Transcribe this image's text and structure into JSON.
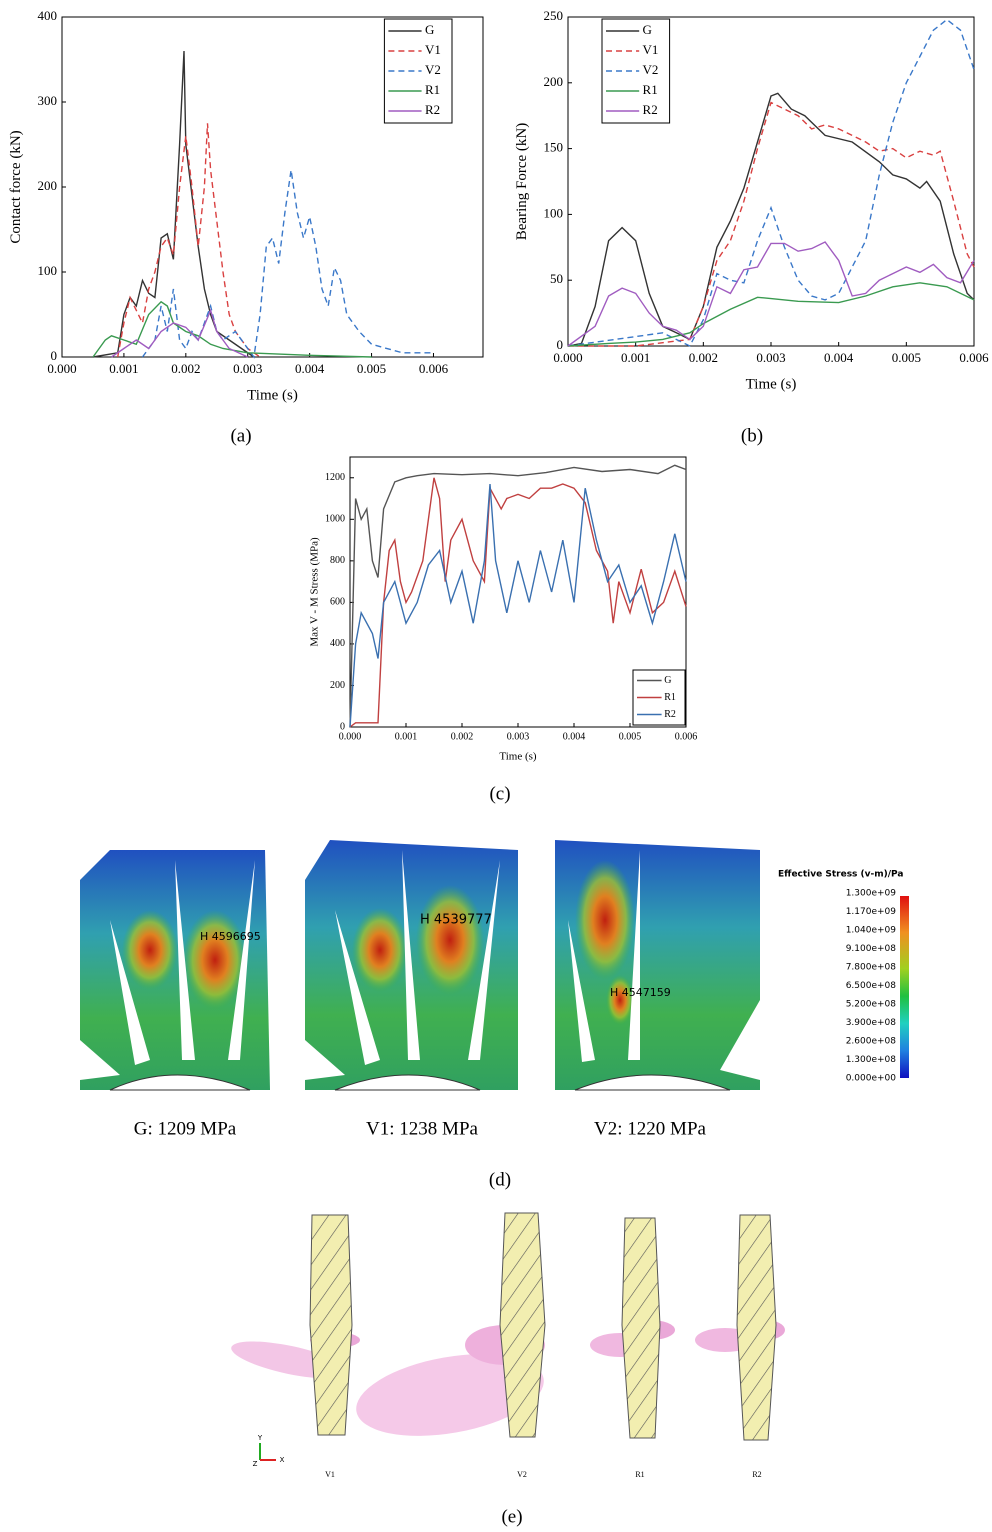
{
  "chart_data": [
    {
      "type": "line",
      "xlabel": "Time (s)",
      "ylabel": "Contact force (kN)",
      "xlim": [
        0,
        0.0068
      ],
      "ylim": [
        0,
        400
      ],
      "xticks": [
        {
          "value": 0,
          "label": "0.000"
        },
        {
          "value": 0.001,
          "label": "0.001"
        },
        {
          "value": 0.002,
          "label": "0.002"
        },
        {
          "value": 0.003,
          "label": "0.003"
        },
        {
          "value": 0.004,
          "label": "0.004"
        },
        {
          "value": 0.005,
          "label": "0.005"
        },
        {
          "value": 0.006,
          "label": "0.006"
        }
      ],
      "yticks": [
        0,
        100,
        200,
        300,
        400
      ],
      "legend": "upper right",
      "series": [
        {
          "name": "G",
          "color": "#333333",
          "dash": false,
          "x": [
            0.0005,
            0.0009,
            0.001,
            0.0011,
            0.0012,
            0.0013,
            0.0014,
            0.0015,
            0.0016,
            0.0017,
            0.0018,
            0.0019,
            0.00197,
            0.002,
            0.0021,
            0.0022,
            0.0023,
            0.0024,
            0.0025,
            0.0027,
            0.0029,
            0.0031
          ],
          "values": [
            0,
            5,
            50,
            70,
            60,
            90,
            75,
            70,
            140,
            145,
            115,
            250,
            360,
            250,
            190,
            130,
            80,
            50,
            30,
            20,
            10,
            0
          ]
        },
        {
          "name": "V1",
          "color": "#d94040",
          "dash": true,
          "x": [
            0.0009,
            0.001,
            0.0011,
            0.0012,
            0.0013,
            0.0014,
            0.0015,
            0.0016,
            0.0017,
            0.0018,
            0.0019,
            0.002,
            0.0021,
            0.0022,
            0.0023,
            0.00235,
            0.0024,
            0.0025,
            0.0026,
            0.0027,
            0.0028,
            0.003,
            0.0032
          ],
          "values": [
            0,
            40,
            70,
            55,
            40,
            80,
            100,
            130,
            140,
            120,
            200,
            260,
            200,
            130,
            200,
            275,
            220,
            160,
            100,
            50,
            30,
            10,
            0
          ]
        },
        {
          "name": "V2",
          "color": "#3a78c9",
          "dash": true,
          "x": [
            0.0013,
            0.0015,
            0.0016,
            0.0017,
            0.0018,
            0.0019,
            0.002,
            0.0021,
            0.0022,
            0.0023,
            0.0024,
            0.0025,
            0.0026,
            0.0028,
            0.003,
            0.0031,
            0.0032,
            0.0033,
            0.0034,
            0.0035,
            0.0036,
            0.0037,
            0.0038,
            0.0039,
            0.004,
            0.0041,
            0.0042,
            0.0043,
            0.0044,
            0.0045,
            0.0046,
            0.0048,
            0.005,
            0.0055,
            0.006
          ],
          "values": [
            0,
            20,
            60,
            30,
            80,
            20,
            10,
            30,
            20,
            40,
            60,
            30,
            20,
            30,
            10,
            0,
            50,
            130,
            140,
            110,
            170,
            220,
            170,
            140,
            165,
            130,
            80,
            60,
            105,
            90,
            50,
            30,
            15,
            5,
            5
          ]
        },
        {
          "name": "R1",
          "color": "#3a9a50",
          "dash": false,
          "x": [
            0.0005,
            0.0007,
            0.0008,
            0.001,
            0.0012,
            0.0014,
            0.0016,
            0.0017,
            0.0018,
            0.002,
            0.0022,
            0.0024,
            0.0026,
            0.003,
            0.004,
            0.005
          ],
          "values": [
            0,
            20,
            25,
            20,
            15,
            50,
            65,
            60,
            40,
            30,
            25,
            15,
            10,
            5,
            2,
            0
          ]
        },
        {
          "name": "R2",
          "color": "#a05cc0",
          "dash": false,
          "x": [
            0.0008,
            0.001,
            0.0012,
            0.0014,
            0.0016,
            0.0018,
            0.002,
            0.0022,
            0.0024,
            0.0025,
            0.0027,
            0.003
          ],
          "values": [
            0,
            10,
            20,
            10,
            30,
            40,
            35,
            20,
            55,
            30,
            10,
            0
          ]
        }
      ]
    },
    {
      "type": "line",
      "xlabel": "Time (s)",
      "ylabel": "Bearing Force (kN)",
      "xlim": [
        0,
        0.006
      ],
      "ylim": [
        0,
        250
      ],
      "xticks": [
        {
          "value": 0,
          "label": "0.000"
        },
        {
          "value": 0.001,
          "label": "0.001"
        },
        {
          "value": 0.002,
          "label": "0.002"
        },
        {
          "value": 0.003,
          "label": "0.003"
        },
        {
          "value": 0.004,
          "label": "0.004"
        },
        {
          "value": 0.005,
          "label": "0.005"
        },
        {
          "value": 0.006,
          "label": "0.006"
        }
      ],
      "yticks": [
        0,
        50,
        100,
        150,
        200,
        250
      ],
      "legend": "upper left",
      "series": [
        {
          "name": "G",
          "color": "#333333",
          "dash": false,
          "x": [
            0,
            0.0002,
            0.0004,
            0.0006,
            0.0008,
            0.001,
            0.0012,
            0.0014,
            0.0016,
            0.0018,
            0.002,
            0.0022,
            0.0024,
            0.0026,
            0.0028,
            0.003,
            0.0031,
            0.0033,
            0.0035,
            0.0038,
            0.0042,
            0.0046,
            0.0048,
            0.005,
            0.0052,
            0.0053,
            0.0055,
            0.0057,
            0.0059,
            0.006
          ],
          "values": [
            0,
            2,
            30,
            80,
            90,
            80,
            40,
            15,
            10,
            5,
            30,
            75,
            95,
            120,
            155,
            190,
            192,
            180,
            175,
            160,
            155,
            140,
            130,
            127,
            120,
            125,
            110,
            70,
            40,
            35
          ]
        },
        {
          "name": "V1",
          "color": "#d94040",
          "dash": true,
          "x": [
            0,
            0.001,
            0.0018,
            0.002,
            0.0022,
            0.0024,
            0.0026,
            0.0028,
            0.003,
            0.0032,
            0.0034,
            0.0036,
            0.0038,
            0.004,
            0.0042,
            0.0044,
            0.0046,
            0.0048,
            0.005,
            0.0052,
            0.0054,
            0.0055,
            0.0057,
            0.0059,
            0.006
          ],
          "values": [
            0,
            0,
            5,
            30,
            65,
            80,
            110,
            150,
            185,
            180,
            175,
            165,
            168,
            165,
            160,
            155,
            148,
            150,
            143,
            148,
            145,
            148,
            110,
            70,
            60
          ]
        },
        {
          "name": "V2",
          "color": "#3a78c9",
          "dash": true,
          "x": [
            0,
            0.0014,
            0.0018,
            0.002,
            0.0022,
            0.0024,
            0.0026,
            0.0028,
            0.003,
            0.0032,
            0.0034,
            0.0036,
            0.0038,
            0.004,
            0.0042,
            0.0044,
            0.0046,
            0.0048,
            0.005,
            0.0052,
            0.0054,
            0.0056,
            0.0058,
            0.006
          ],
          "values": [
            0,
            10,
            0,
            20,
            55,
            50,
            48,
            80,
            105,
            75,
            50,
            38,
            35,
            40,
            60,
            80,
            130,
            170,
            200,
            220,
            240,
            248,
            240,
            210
          ]
        },
        {
          "name": "R1",
          "color": "#3a9a50",
          "dash": false,
          "x": [
            0,
            0.0006,
            0.001,
            0.0014,
            0.0018,
            0.002,
            0.0024,
            0.0028,
            0.003,
            0.0034,
            0.004,
            0.0044,
            0.0048,
            0.0052,
            0.0056,
            0.006
          ],
          "values": [
            0,
            2,
            3,
            5,
            10,
            17,
            28,
            37,
            36,
            34,
            33,
            38,
            45,
            48,
            45,
            35
          ]
        },
        {
          "name": "R2",
          "color": "#a05cc0",
          "dash": false,
          "x": [
            0,
            0.0004,
            0.0006,
            0.0008,
            0.001,
            0.0012,
            0.0014,
            0.0016,
            0.0018,
            0.002,
            0.0022,
            0.0024,
            0.0026,
            0.0028,
            0.003,
            0.0032,
            0.0034,
            0.0036,
            0.0038,
            0.004,
            0.0042,
            0.0044,
            0.0046,
            0.0048,
            0.005,
            0.0052,
            0.0054,
            0.0056,
            0.0058,
            0.006
          ],
          "values": [
            0,
            15,
            38,
            44,
            40,
            25,
            15,
            12,
            5,
            15,
            45,
            40,
            58,
            60,
            78,
            78,
            72,
            74,
            79,
            65,
            38,
            40,
            50,
            55,
            60,
            56,
            62,
            52,
            48,
            65
          ]
        }
      ]
    },
    {
      "type": "line",
      "xlabel": "Time (s)",
      "ylabel": "Max V - M Stress (MPa)",
      "xlim": [
        0,
        0.006
      ],
      "ylim": [
        0,
        1300
      ],
      "xticks": [
        {
          "value": 0,
          "label": "0.000"
        },
        {
          "value": 0.001,
          "label": "0.001"
        },
        {
          "value": 0.002,
          "label": "0.002"
        },
        {
          "value": 0.003,
          "label": "0.003"
        },
        {
          "value": 0.004,
          "label": "0.004"
        },
        {
          "value": 0.005,
          "label": "0.005"
        },
        {
          "value": 0.006,
          "label": "0.006"
        }
      ],
      "yticks": [
        0,
        200,
        400,
        600,
        800,
        1000,
        1200
      ],
      "legend": "lower right",
      "series": [
        {
          "name": "G",
          "color": "#555555",
          "dash": false,
          "x": [
            0,
            0.0001,
            0.0002,
            0.0003,
            0.0004,
            0.0005,
            0.0006,
            0.0008,
            0.001,
            0.0012,
            0.0015,
            0.002,
            0.0025,
            0.003,
            0.0035,
            0.004,
            0.0045,
            0.005,
            0.0055,
            0.0058,
            0.006
          ],
          "values": [
            0,
            1100,
            1000,
            1050,
            800,
            720,
            1050,
            1180,
            1200,
            1210,
            1220,
            1215,
            1220,
            1210,
            1225,
            1250,
            1230,
            1240,
            1220,
            1260,
            1240
          ]
        },
        {
          "name": "R1",
          "color": "#c04040",
          "dash": false,
          "x": [
            0,
            0.0001,
            0.0005,
            0.0006,
            0.0007,
            0.0008,
            0.0009,
            0.001,
            0.0011,
            0.0013,
            0.0015,
            0.0016,
            0.0017,
            0.0018,
            0.002,
            0.0022,
            0.0024,
            0.0025,
            0.0027,
            0.0028,
            0.003,
            0.0032,
            0.0034,
            0.0036,
            0.0038,
            0.004,
            0.0042,
            0.0044,
            0.0046,
            0.0047,
            0.0048,
            0.005,
            0.0052,
            0.0054,
            0.0056,
            0.0058,
            0.006
          ],
          "values": [
            0,
            20,
            20,
            600,
            850,
            900,
            700,
            600,
            650,
            800,
            1200,
            1100,
            700,
            900,
            1000,
            800,
            700,
            1150,
            1050,
            1100,
            1120,
            1100,
            1150,
            1150,
            1170,
            1150,
            1080,
            850,
            750,
            500,
            700,
            550,
            760,
            550,
            600,
            750,
            580
          ]
        },
        {
          "name": "R2",
          "color": "#3a70b0",
          "dash": false,
          "x": [
            0,
            0.0001,
            0.0002,
            0.0004,
            0.0005,
            0.0006,
            0.0008,
            0.001,
            0.0012,
            0.0014,
            0.0016,
            0.0018,
            0.002,
            0.0022,
            0.0024,
            0.0025,
            0.0026,
            0.0028,
            0.003,
            0.0032,
            0.0034,
            0.0036,
            0.0038,
            0.004,
            0.0042,
            0.0044,
            0.0046,
            0.0048,
            0.005,
            0.0052,
            0.0054,
            0.0056,
            0.0058,
            0.006
          ],
          "values": [
            0,
            400,
            550,
            450,
            330,
            600,
            700,
            500,
            600,
            780,
            850,
            600,
            750,
            500,
            800,
            1170,
            800,
            550,
            800,
            600,
            850,
            650,
            900,
            600,
            1150,
            900,
            700,
            780,
            600,
            680,
            500,
            700,
            930,
            700
          ]
        }
      ]
    }
  ],
  "captions": [
    "(a)",
    "(b)",
    "(c)",
    "(d)",
    "(e)"
  ],
  "stress_panel": {
    "images": [
      {
        "node": "H 4596695",
        "label": "G: 1209 MPa"
      },
      {
        "node": "H 4539777",
        "label": "V1: 1238 MPa"
      },
      {
        "node": "H 4547159",
        "label": "V2: 1220 MPa"
      }
    ],
    "colorbar_title": "Effective Stress (v-m)/Pa",
    "colorbar_labels": [
      "1.300e+09",
      "1.170e+09",
      "1.040e+09",
      "9.100e+08",
      "7.800e+08",
      "6.500e+08",
      "5.200e+08",
      "3.900e+08",
      "2.600e+08",
      "1.300e+08",
      "0.000e+00"
    ]
  },
  "particle_panel": {
    "labels": [
      "V1",
      "V2",
      "R1",
      "R2"
    ],
    "axes": [
      "Y",
      "Z",
      "X"
    ]
  }
}
